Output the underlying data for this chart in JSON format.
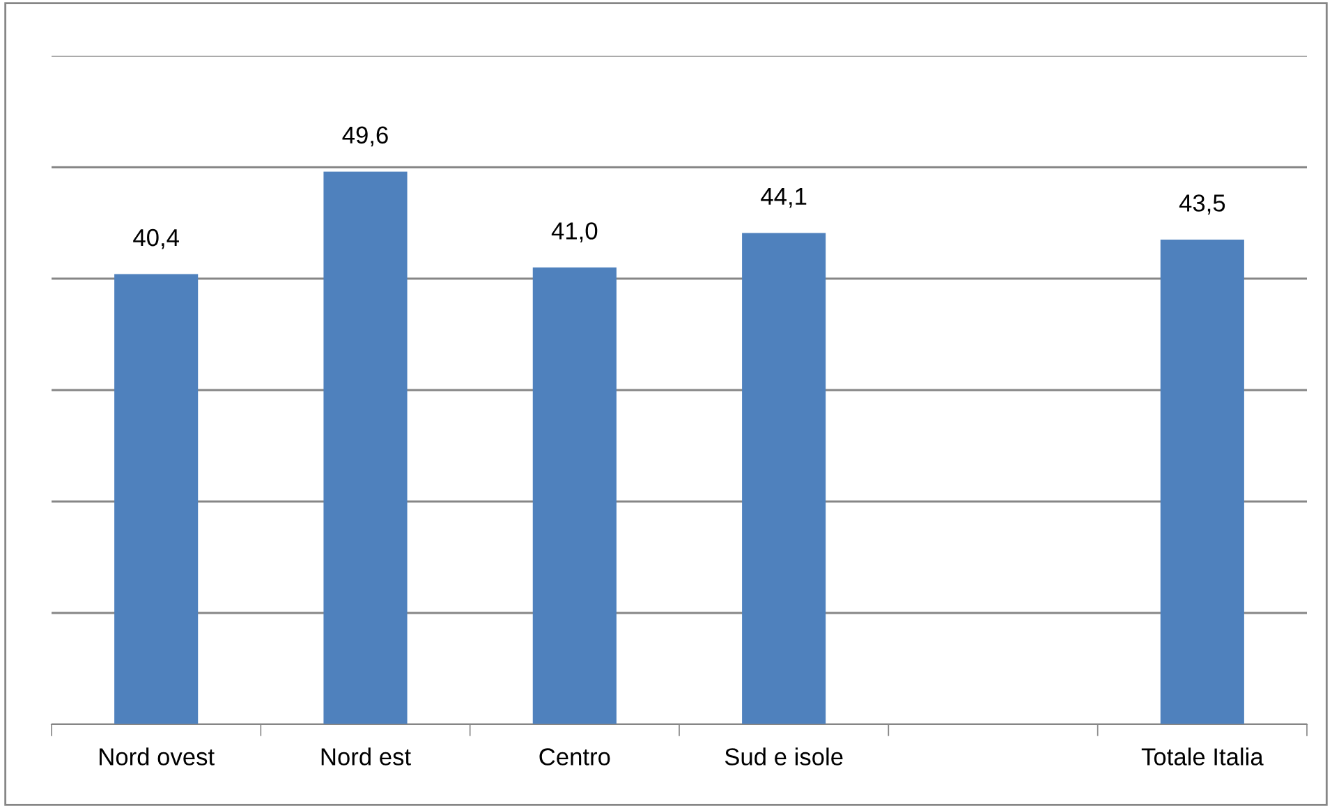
{
  "chart_data": {
    "type": "bar",
    "categories": [
      "Nord ovest",
      "Nord est",
      "Centro",
      "Sud e isole",
      null,
      "Totale Italia"
    ],
    "values": [
      40.4,
      49.6,
      41.0,
      44.1,
      null,
      43.5
    ],
    "value_labels": [
      "40,4",
      "49,6",
      "41,0",
      "44,1",
      null,
      "43,5"
    ],
    "color": "#4f81bd",
    "ylim": [
      0,
      60
    ],
    "yticks": [
      {
        "value": 0,
        "label": null
      },
      {
        "value": 10,
        "label": null
      },
      {
        "value": 20,
        "label": null
      },
      {
        "value": 30,
        "label": null
      },
      {
        "value": 40,
        "label": null
      },
      {
        "value": 50,
        "label": null
      },
      {
        "value": 60,
        "label": null
      }
    ],
    "grid": "y",
    "tick_labels": "x",
    "legend": false
  }
}
